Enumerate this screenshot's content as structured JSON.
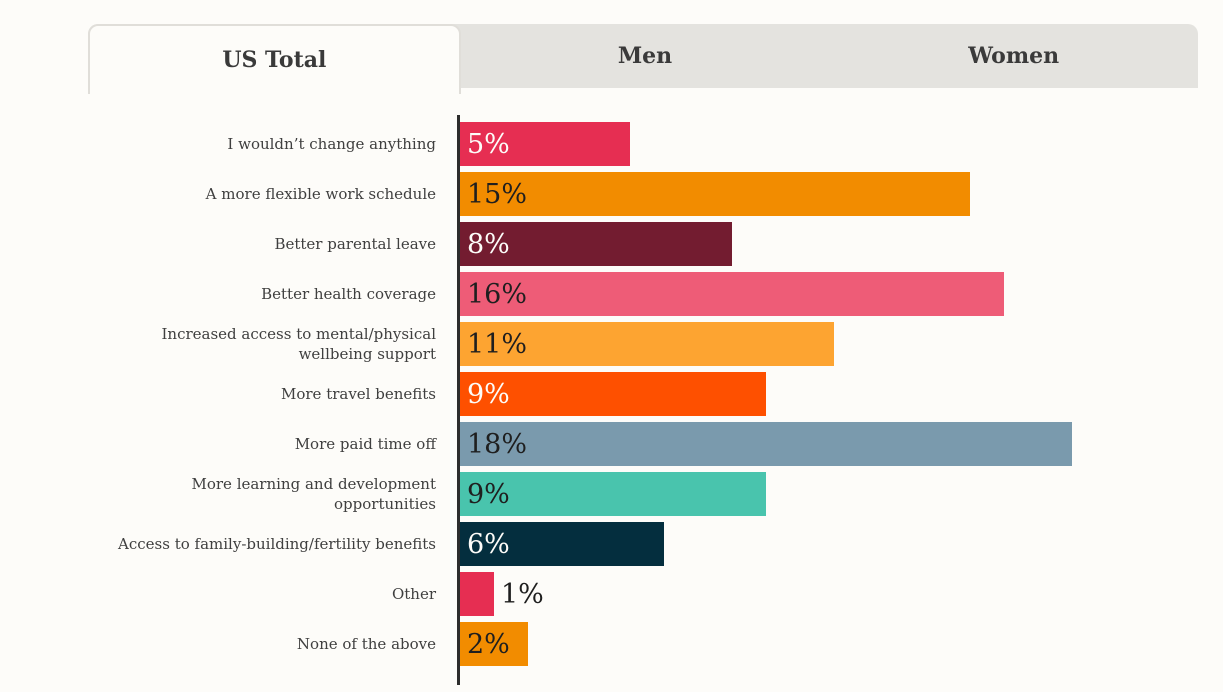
{
  "page": {
    "background": "#fdfcf9"
  },
  "tabs": {
    "bar_background": "#e4e3df",
    "active_background": "#fdfcf9",
    "items": [
      {
        "label": "US Total",
        "active": true
      },
      {
        "label": "Men",
        "active": false
      },
      {
        "label": "Women",
        "active": false
      }
    ]
  },
  "chart_data": {
    "type": "bar",
    "orientation": "horizontal",
    "value_unit": "%",
    "xlim": [
      0,
      22
    ],
    "grid": false,
    "legend": false,
    "axis_color": "#2d2d2d",
    "categories": [
      "I wouldn’t change anything",
      "A more flexible work schedule",
      "Better parental leave",
      "Better health coverage",
      "Increased access to mental/physical wellbeing support",
      "More travel benefits",
      "More paid time off",
      "More learning and development opportunities",
      "Access to family-building/fertility benefits",
      "Other",
      "None of the above"
    ],
    "values": [
      5,
      15,
      8,
      16,
      11,
      9,
      18,
      9,
      6,
      1,
      2
    ],
    "bar_colors": [
      "#e62e52",
      "#f28c00",
      "#731c30",
      "#ee5c77",
      "#fda431",
      "#fe5000",
      "#7a9aad",
      "#49c4ad",
      "#042e3e",
      "#e62e52",
      "#f28c00"
    ],
    "value_label_colors": [
      "#fdfcf9",
      "#1f1f1f",
      "#fdfcf9",
      "#1f1f1f",
      "#1f1f1f",
      "#fdfcf9",
      "#1f1f1f",
      "#1f1f1f",
      "#fdfcf9",
      "#1f1f1f",
      "#1f1f1f"
    ],
    "value_label_placement": [
      "inside",
      "inside",
      "inside",
      "inside",
      "inside",
      "inside",
      "inside",
      "inside",
      "inside",
      "outside",
      "inside"
    ]
  }
}
